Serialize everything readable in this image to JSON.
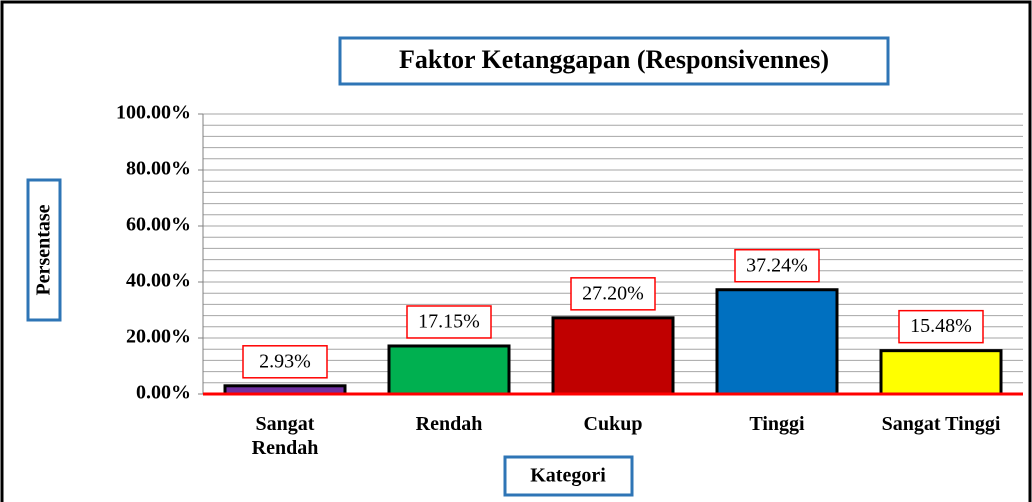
{
  "chart_data": {
    "type": "bar",
    "title": "Faktor Ketanggapan (Responsivennes)",
    "x_label": "Kategori",
    "y_label": "Persentase",
    "categories": [
      "Sangat Rendah",
      "Rendah",
      "Cukup",
      "Tinggi",
      "Sangat Tinggi"
    ],
    "values": [
      2.93,
      17.15,
      27.2,
      37.24,
      15.48
    ],
    "value_labels": [
      "2.93%",
      "17.15%",
      "27.20%",
      "37.24%",
      "15.48%"
    ],
    "colors": [
      "#7030a0",
      "#00b050",
      "#c00000",
      "#0070c0",
      "#ffff00"
    ],
    "ylim": [
      0,
      100
    ],
    "yticks": [
      {
        "value": 0,
        "label": "0.00%"
      },
      {
        "value": 20,
        "label": "20.00%"
      },
      {
        "value": 40,
        "label": "40.00%"
      },
      {
        "value": 60,
        "label": "60.00%"
      },
      {
        "value": 80,
        "label": "80.00%"
      },
      {
        "value": 100,
        "label": "100.00%"
      }
    ],
    "minor_yticks": [
      4,
      8,
      12,
      16,
      24,
      28,
      32,
      36,
      44,
      48,
      52,
      56,
      64,
      68,
      72,
      76,
      84,
      88,
      92,
      96
    ],
    "grid": true
  }
}
